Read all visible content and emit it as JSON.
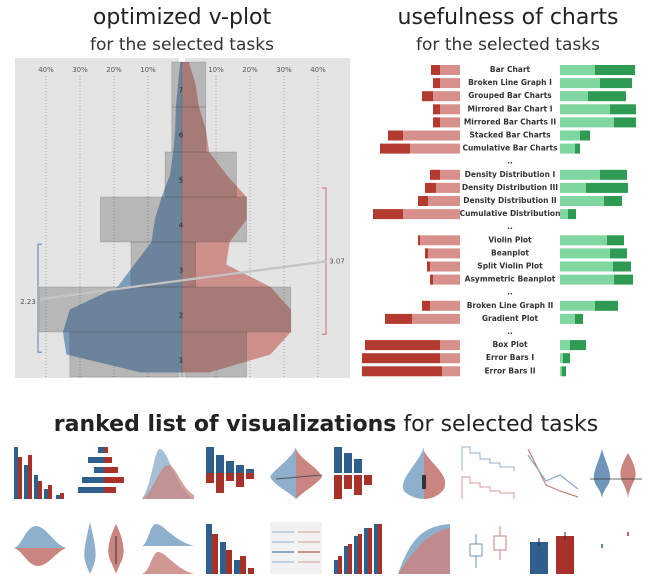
{
  "chart_data": [
    {
      "type": "vplot",
      "title": "optimized v-plot",
      "subtitle": "for the selected tasks",
      "categories": [
        "1",
        "2",
        "3",
        "4",
        "5",
        "6",
        "7"
      ],
      "xlim": [
        -45,
        45
      ],
      "xticks": [
        {
          "value": -40,
          "label": "40%"
        },
        {
          "value": -30,
          "label": "30%"
        },
        {
          "value": -20,
          "label": "20%"
        },
        {
          "value": -10,
          "label": "10%"
        },
        {
          "value": 10,
          "label": "10%"
        },
        {
          "value": 20,
          "label": "20%"
        },
        {
          "value": 30,
          "label": "30%"
        },
        {
          "value": 40,
          "label": "40%"
        }
      ],
      "grid": true,
      "density_levels": [
        0.6,
        1,
        1.5,
        2,
        2.5,
        3,
        3.5,
        4,
        4.5,
        5,
        5.5,
        6,
        6.5,
        7,
        7.5
      ],
      "series": [
        {
          "color": "#6f95b8",
          "values": [
            33,
            42,
            15,
            24,
            5,
            3,
            3
          ],
          "density": [
            12,
            34,
            35,
            33,
            19,
            14,
            9,
            8,
            6,
            3.5,
            2.6,
            2,
            1.8,
            1.2,
            0.6
          ],
          "mean": 2.23,
          "range": [
            1.05,
            3.45
          ]
        },
        {
          "color": "#c98580",
          "values": [
            19,
            32,
            4,
            19,
            16,
            7,
            7
          ],
          "density": [
            8,
            26,
            32,
            32,
            26,
            13,
            14,
            19,
            19,
            13,
            8,
            7,
            5,
            4,
            2
          ],
          "mean": 3.07,
          "range": [
            1.45,
            4.7
          ]
        }
      ]
    },
    {
      "type": "diverging",
      "title": "usefulness of charts",
      "subtitle": "for the selected tasks",
      "categories": [
        "Bar Chart",
        "Broken Line Graph I",
        "Grouped Bar Charts",
        "Mirrored Bar Chart I",
        "Mirrored Bar Charts II",
        "Stacked Bar Charts",
        "Cumulative Bar Charts",
        "..",
        "Density Distribution I",
        "Density Distribution III",
        "Density Distribution II",
        "Cumulative Distribution",
        "..",
        "Violin Plot",
        "Beanplot",
        "Split Violin Plot",
        "Asymmetric Beanplot",
        "..",
        "Broken Line Graph II",
        "Gradient Plot",
        "..",
        "Box Plot",
        "Error Bars I",
        "Error Bars II"
      ],
      "xlim": [
        0,
        100
      ],
      "series": [
        {
          "color": "#d7908b",
          "values": [
            20,
            20,
            27,
            20,
            20,
            57,
            50,
            null,
            20,
            24,
            32,
            57,
            null,
            40,
            32,
            30,
            27,
            null,
            30,
            48,
            null,
            20,
            20,
            18
          ]
        },
        {
          "color": "#b33a2f",
          "values": [
            9,
            7,
            11,
            7,
            7,
            15,
            30,
            null,
            10,
            11,
            10,
            30,
            null,
            2,
            3,
            3,
            3,
            null,
            8,
            27,
            null,
            75,
            78,
            80
          ]
        },
        {
          "color": "#7fd6a0",
          "values": [
            35,
            40,
            28,
            50,
            54,
            20,
            15,
            null,
            40,
            26,
            44,
            8,
            null,
            47,
            50,
            53,
            54,
            null,
            35,
            15,
            null,
            10,
            3,
            2
          ]
        },
        {
          "color": "#2e9a52",
          "values": [
            40,
            32,
            38,
            26,
            22,
            10,
            5,
            null,
            27,
            42,
            18,
            8,
            null,
            17,
            17,
            18,
            19,
            null,
            23,
            8,
            null,
            16,
            7,
            4
          ]
        }
      ]
    }
  ],
  "ranked_list": {
    "title": "ranked list of visualizations",
    "subtitle": "for selected tasks"
  }
}
